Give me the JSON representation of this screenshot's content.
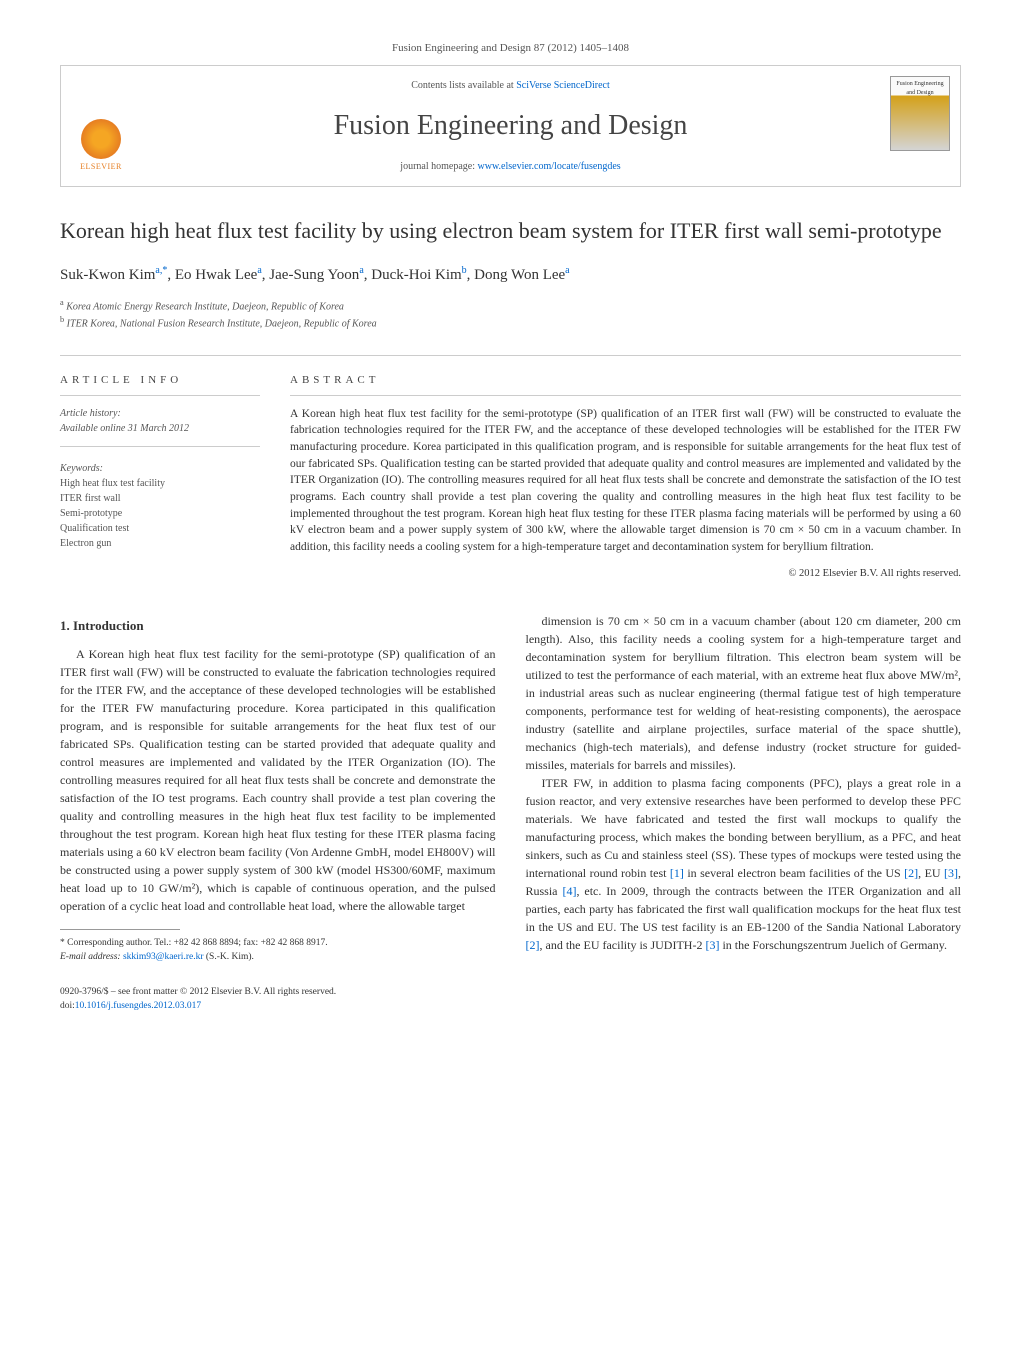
{
  "citation": "Fusion Engineering and Design 87 (2012) 1405–1408",
  "header": {
    "contents_prefix": "Contents lists available at ",
    "contents_link": "SciVerse ScienceDirect",
    "journal_title": "Fusion Engineering and Design",
    "homepage_prefix": "journal homepage: ",
    "homepage_link": "www.elsevier.com/locate/fusengdes",
    "elsevier_label": "ELSEVIER",
    "cover_label": "Fusion Engineering and Design"
  },
  "title": "Korean high heat flux test facility by using electron beam system for ITER first wall semi-prototype",
  "authors_html": "Suk-Kwon Kim",
  "authors": [
    {
      "name": "Suk-Kwon Kim",
      "sup": "a,*"
    },
    {
      "name": "Eo Hwak Lee",
      "sup": "a"
    },
    {
      "name": "Jae-Sung Yoon",
      "sup": "a"
    },
    {
      "name": "Duck-Hoi Kim",
      "sup": "b"
    },
    {
      "name": "Dong Won Lee",
      "sup": "a"
    }
  ],
  "affiliations": [
    {
      "sup": "a",
      "text": "Korea Atomic Energy Research Institute, Daejeon, Republic of Korea"
    },
    {
      "sup": "b",
      "text": "ITER Korea, National Fusion Research Institute, Daejeon, Republic of Korea"
    }
  ],
  "article_info": {
    "label": "ARTICLE INFO",
    "history_label": "Article history:",
    "history_line": "Available online 31 March 2012",
    "keywords_label": "Keywords:",
    "keywords": [
      "High heat flux test facility",
      "ITER first wall",
      "Semi-prototype",
      "Qualification test",
      "Electron gun"
    ]
  },
  "abstract": {
    "label": "ABSTRACT",
    "text": "A Korean high heat flux test facility for the semi-prototype (SP) qualification of an ITER first wall (FW) will be constructed to evaluate the fabrication technologies required for the ITER FW, and the acceptance of these developed technologies will be established for the ITER FW manufacturing procedure. Korea participated in this qualification program, and is responsible for suitable arrangements for the heat flux test of our fabricated SPs. Qualification testing can be started provided that adequate quality and control measures are implemented and validated by the ITER Organization (IO). The controlling measures required for all heat flux tests shall be concrete and demonstrate the satisfaction of the IO test programs. Each country shall provide a test plan covering the quality and controlling measures in the high heat flux test facility to be implemented throughout the test program. Korean high heat flux testing for these ITER plasma facing materials will be performed by using a 60 kV electron beam and a power supply system of 300 kW, where the allowable target dimension is 70 cm × 50 cm in a vacuum chamber. In addition, this facility needs a cooling system for a high-temperature target and decontamination system for beryllium filtration.",
    "copyright": "© 2012 Elsevier B.V. All rights reserved."
  },
  "body": {
    "intro_heading": "1. Introduction",
    "intro_p1": "A Korean high heat flux test facility for the semi-prototype (SP) qualification of an ITER first wall (FW) will be constructed to evaluate the fabrication technologies required for the ITER FW, and the acceptance of these developed technologies will be established for the ITER FW manufacturing procedure. Korea participated in this qualification program, and is responsible for suitable arrangements for the heat flux test of our fabricated SPs. Qualification testing can be started provided that adequate quality and control measures are implemented and validated by the ITER Organization (IO). The controlling measures required for all heat flux tests shall be concrete and demonstrate the satisfaction of the IO test programs. Each country shall provide a test plan covering the quality and controlling measures in the high heat flux test facility to be implemented throughout the test program. Korean high heat flux testing for these ITER plasma facing materials using a 60 kV electron beam facility (Von Ardenne GmbH, model EH800V) will be constructed using a power supply system of 300 kW (model HS300/60MF, maximum heat load up to 10 GW/m²), which is capable of continuous operation, and the pulsed operation of a cyclic heat load and controllable heat load, where the allowable target",
    "intro_p2": "dimension is 70 cm × 50 cm in a vacuum chamber (about 120 cm diameter, 200 cm length). Also, this facility needs a cooling system for a high-temperature target and decontamination system for beryllium filtration. This electron beam system will be utilized to test the performance of each material, with an extreme heat flux above MW/m², in industrial areas such as nuclear engineering (thermal fatigue test of high temperature components, performance test for welding of heat-resisting components), the aerospace industry (satellite and airplane projectiles, surface material of the space shuttle), mechanics (high-tech materials), and defense industry (rocket structure for guided-missiles, materials for barrels and missiles).",
    "intro_p3_a": "ITER FW, in addition to plasma facing components (PFC), plays a great role in a fusion reactor, and very extensive researches have been performed to develop these PFC materials. We have fabricated and tested the first wall mockups to qualify the manufacturing process, which makes the bonding between beryllium, as a PFC, and heat sinkers, such as Cu and stainless steel (SS). These types of mockups were tested using the international round robin test ",
    "ref1": "[1]",
    "intro_p3_b": " in several electron beam facilities of the US ",
    "ref2": "[2]",
    "intro_p3_c": ", EU ",
    "ref3": "[3]",
    "intro_p3_d": ", Russia ",
    "ref4": "[4]",
    "intro_p3_e": ", etc. In 2009, through the contracts between the ITER Organization and all parties, each party has fabricated the first wall qualification mockups for the heat flux test in the US and EU. The US test facility is an EB-1200 of the Sandia National Laboratory ",
    "ref2b": "[2]",
    "intro_p3_f": ", and the EU facility is JUDITH-2 ",
    "ref3b": "[3]",
    "intro_p3_g": " in the Forschungszentrum Juelich of Germany."
  },
  "footnote": {
    "corr_label": "* Corresponding author. Tel.: +82 42 868 8894; fax: +82 42 868 8917.",
    "email_label": "E-mail address: ",
    "email": "skkim93@kaeri.re.kr",
    "email_suffix": " (S.-K. Kim)."
  },
  "bottom": {
    "issn_line": "0920-3796/$ – see front matter © 2012 Elsevier B.V. All rights reserved.",
    "doi_prefix": "doi:",
    "doi": "10.1016/j.fusengdes.2012.03.017"
  },
  "colors": {
    "link": "#0066cc",
    "text": "#333333",
    "muted": "#555555",
    "border": "#cccccc",
    "elsevier_orange": "#e67e22"
  }
}
